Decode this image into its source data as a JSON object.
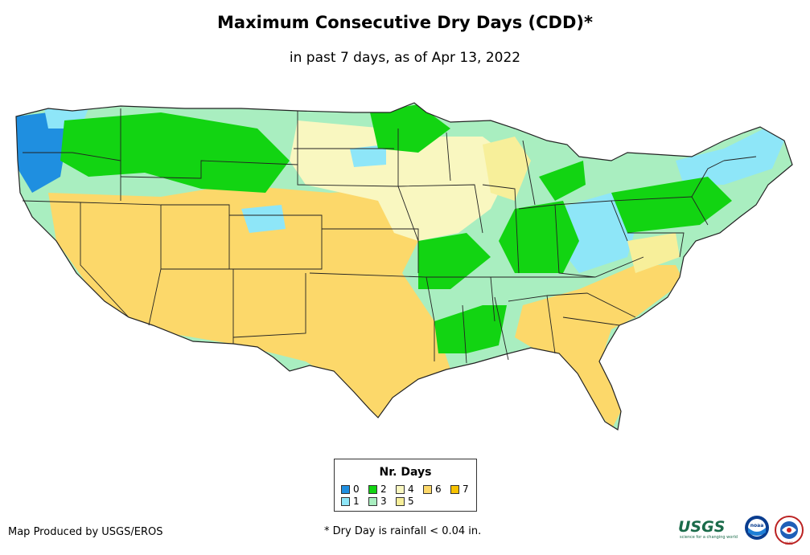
{
  "title": "Maximum Consecutive Dry Days (CDD)*",
  "subtitle": "in past 7 days, as of Apr 13, 2022",
  "legend": {
    "title": "Nr. Days",
    "items": [
      {
        "label": "0",
        "color": "#1f8fe0"
      },
      {
        "label": "1",
        "color": "#8ee6f8"
      },
      {
        "label": "2",
        "color": "#12d412"
      },
      {
        "label": "3",
        "color": "#a9eec0"
      },
      {
        "label": "4",
        "color": "#f9f7c0"
      },
      {
        "label": "5",
        "color": "#f7ef9a"
      },
      {
        "label": "6",
        "color": "#fcd86a"
      },
      {
        "label": "7",
        "color": "#f7c200"
      }
    ]
  },
  "credit": "Map Produced by USGS/EROS",
  "footnote": "* Dry Day is rainfall < 0.04 in.",
  "logos": {
    "usgs": "USGS",
    "usgs_tagline": "science for a changing world",
    "noaa": "noaa",
    "nws": "NWS"
  }
}
